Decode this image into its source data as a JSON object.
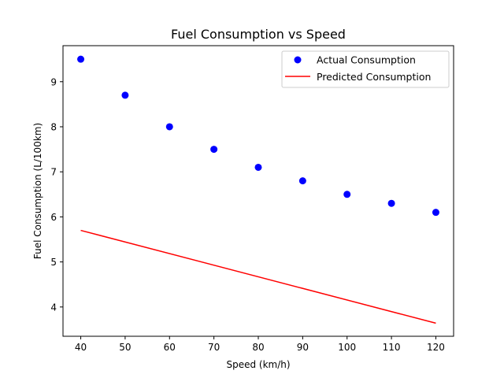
{
  "chart_data": {
    "type": "scatter",
    "title": "Fuel Consumption vs Speed",
    "xlabel": "Speed (km/h)",
    "ylabel": "Fuel Consumption (L/100km)",
    "xlim": [
      36,
      124
    ],
    "ylim": [
      3.35,
      9.8
    ],
    "xticks": [
      40,
      50,
      60,
      70,
      80,
      90,
      100,
      110,
      120
    ],
    "yticks": [
      4,
      5,
      6,
      7,
      8,
      9
    ],
    "grid": false,
    "legend_position": "top-right",
    "series": [
      {
        "name": "Actual Consumption",
        "kind": "scatter",
        "color": "#0000ff",
        "x": [
          40,
          50,
          60,
          70,
          80,
          90,
          100,
          110,
          120
        ],
        "y": [
          9.5,
          8.7,
          8.0,
          7.5,
          7.1,
          6.8,
          6.5,
          6.3,
          6.1
        ]
      },
      {
        "name": "Predicted Consumption",
        "kind": "line",
        "color": "#ff0000",
        "x": [
          40,
          120
        ],
        "y": [
          5.7,
          3.64
        ]
      }
    ]
  }
}
